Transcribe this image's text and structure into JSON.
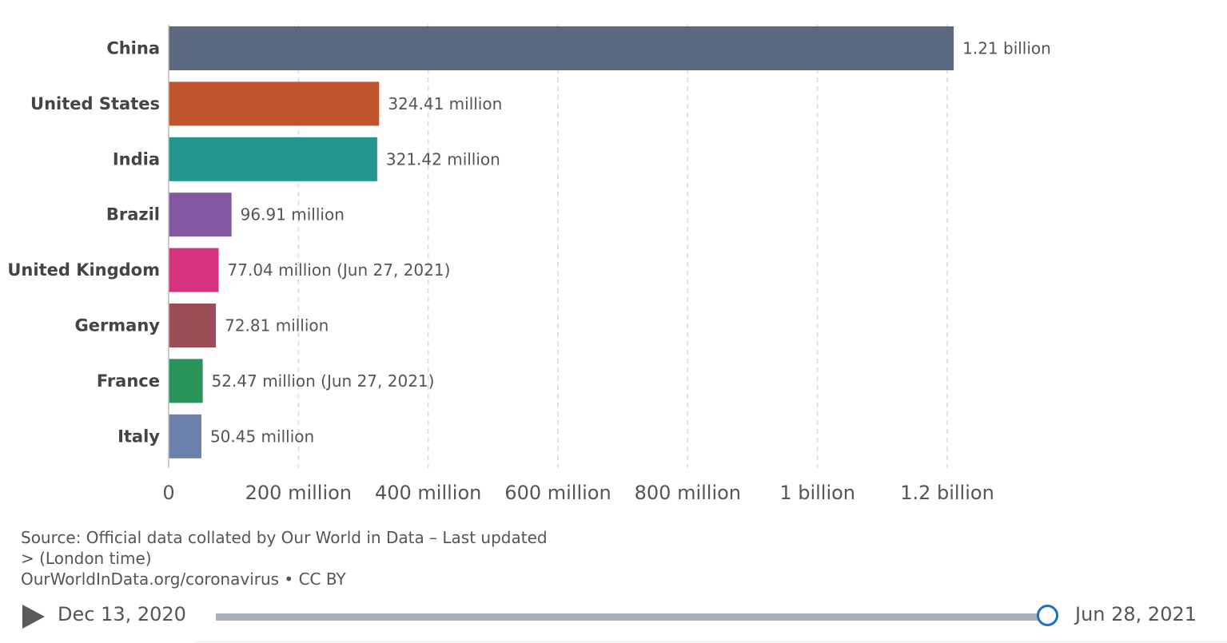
{
  "chart_data": {
    "type": "bar",
    "orientation": "horizontal",
    "categories": [
      "China",
      "United States",
      "India",
      "Brazil",
      "United Kingdom",
      "Germany",
      "France",
      "Italy"
    ],
    "values": [
      1210000000,
      324410000,
      321420000,
      96910000,
      77040000,
      72810000,
      52470000,
      50450000
    ],
    "value_labels": [
      "1.21 billion",
      "324.41 million",
      "321.42 million",
      "96.91 million",
      "77.04 million (Jun 27, 2021)",
      "72.81 million",
      "52.47 million (Jun 27, 2021)",
      "50.45 million"
    ],
    "colors": [
      "#5b6a80",
      "#be552c",
      "#23968f",
      "#8557a3",
      "#d6317f",
      "#9b4e55",
      "#289359",
      "#6b80ab"
    ],
    "xlim": [
      0,
      1200000000
    ],
    "xticks": [
      0,
      200000000,
      400000000,
      600000000,
      800000000,
      1000000000,
      1200000000
    ],
    "xtick_labels": [
      "0",
      "200 million",
      "400 million",
      "600 million",
      "800 million",
      "1 billion",
      "1.2 billion"
    ],
    "grid": true
  },
  "source": {
    "line1": "Source: Official data collated by Our World in Data – Last updated",
    "line2": "> (London time)",
    "line3": "OurWorldInData.org/coronavirus • CC BY"
  },
  "timeline": {
    "start_date": "Dec 13, 2020",
    "end_date": "Jun 28, 2021",
    "position": 1.0,
    "play_icon": "play-icon",
    "track_color": "#a9b0bb",
    "handle_color": "#1a6fd1"
  }
}
